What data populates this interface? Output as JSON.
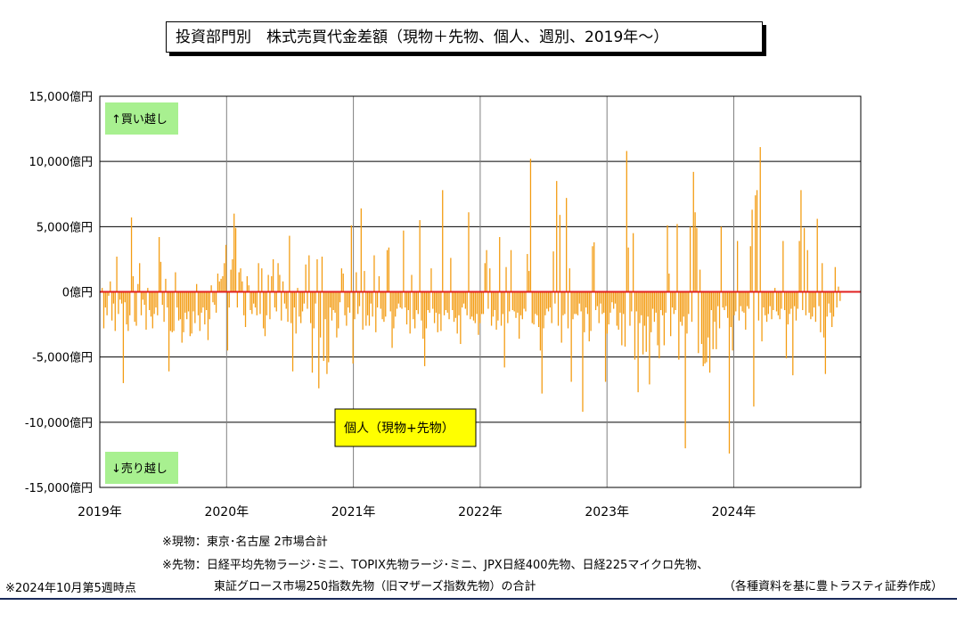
{
  "title": "投資部門別　株式売買代金差額（現物＋先物、個人、週別、2019年～）",
  "colors": {
    "bar": "#F39C12",
    "zero_line": "#E02020",
    "grid": "#000000",
    "label_bg": "#A8F090",
    "series_label_bg": "#FFFF00"
  },
  "annotations": {
    "buy": "↑買い越し",
    "sell": "↓売り越し",
    "series_label": "個人（現物+先物）"
  },
  "notes": {
    "spot": "※現物：東京･名古屋 2市場合計",
    "futures_line1": "※先物：日経平均先物ラージ･ミニ、TOPIX先物ラージ･ミニ、JPX日経400先物、日経225マイクロ先物、",
    "futures_line2": "東証グロース市場250指数先物（旧マザーズ指数先物）の合計",
    "as_of": "※2024年10月第5週時点",
    "source": "（各種資料を基に豊トラスティ証券作成）"
  },
  "chart_data": {
    "type": "bar",
    "title": "投資部門別　株式売買代金差額（現物＋先物、個人、週別、2019年～）",
    "series": [
      {
        "name": "個人（現物+先物）",
        "values": [
          300,
          -2800,
          -1200,
          -1800,
          -300,
          800,
          -2200,
          -900,
          -3000,
          2700,
          -1700,
          -600,
          -900,
          -7000,
          -800,
          -2500,
          -3000,
          -1800,
          5700,
          1200,
          -2300,
          -2600,
          600,
          2200,
          -1800,
          -600,
          -1000,
          -2900,
          300,
          -1400,
          -1900,
          -2800,
          -1700,
          -1200,
          -1800,
          4200,
          2300,
          -1000,
          -2300,
          1000,
          -1200,
          -6100,
          -3000,
          -3100,
          -3000,
          1500,
          -1200,
          -2200,
          -2100,
          -3900,
          -3100,
          -1600,
          -2100,
          -1500,
          -3400,
          -3200,
          -1500,
          -2400,
          600,
          -1800,
          -3000,
          -1600,
          -1200,
          -2500,
          -1400,
          -3700,
          -2100,
          500,
          -800,
          -1000,
          -1600,
          1400,
          800,
          1000,
          1200,
          2200,
          3600,
          -4500,
          -1200,
          1700,
          2500,
          6000,
          4900,
          -1200,
          1500,
          1800,
          800,
          -1800,
          -2700,
          1200,
          500,
          -1400,
          -1700,
          -900,
          -1200,
          -1800,
          2200,
          -1700,
          1800,
          -2800,
          -3400,
          -1800,
          1300,
          -2100,
          1200,
          2500,
          -1200,
          -1500,
          2200,
          1300,
          -2200,
          800,
          -900,
          -1300,
          -2300,
          4300,
          -2400,
          -6100,
          -1200,
          -3200,
          300,
          -1900,
          -2400,
          -1500,
          -900,
          2100,
          -1300,
          2800,
          -2400,
          -6200,
          -2800,
          -900,
          2500,
          -7400,
          -3500,
          2700,
          -5300,
          -2100,
          -6300,
          -5400,
          -1200,
          -2200,
          -1400,
          -1600,
          -3500,
          -2800,
          -800,
          1800,
          1400,
          -1800,
          -2600,
          -1200,
          -1600,
          5100,
          -5500,
          -2100,
          1500,
          -1700,
          -1100,
          6400,
          -2900,
          1600,
          -2600,
          -1800,
          -2600,
          -900,
          -1900,
          2800,
          -3100,
          -1200,
          1200,
          -1300,
          -2100,
          -2300,
          -1900,
          3200,
          3400,
          -1500,
          -4300,
          -2800,
          -1900,
          -1300,
          -900,
          -1200,
          -1300,
          4700,
          -1200,
          -2500,
          -1400,
          -3200,
          1300,
          -2100,
          -2800,
          -1400,
          -1700,
          5500,
          -2200,
          -3600,
          -5700,
          -2800,
          -1400,
          -1600,
          1800,
          -1300,
          -2400,
          -1600,
          -3100,
          -1700,
          -3000,
          7800,
          -1800,
          -1400,
          -1600,
          -2100,
          2600,
          -1400,
          -2300,
          -2000,
          -3200,
          -1800,
          -4000,
          -1200,
          -900,
          -1300,
          -1800,
          6100,
          -2100,
          -1900,
          -2200,
          -2400,
          -1700,
          -3300,
          -2400,
          -1700,
          -1700,
          2200,
          3200,
          -1300,
          1800,
          -2600,
          -1900,
          -1400,
          -2900,
          -2200,
          4200,
          -2600,
          -1700,
          -5800,
          1900,
          -2400,
          -1500,
          3200,
          -1400,
          -1500,
          -2000,
          -1600,
          -3600,
          -1800,
          -2100,
          -1300,
          -1500,
          2900,
          1600,
          10200,
          -2400,
          -2500,
          -1700,
          -1800,
          -2700,
          -4500,
          -7800,
          -2800,
          -1800,
          -1300,
          -1500,
          -1200,
          -2400,
          3100,
          -900,
          8500,
          -2600,
          5900,
          -3900,
          -1800,
          -1700,
          7200,
          -2800,
          1800,
          -6900,
          -2100,
          -1700,
          -1700,
          -1800,
          -900,
          -1500,
          -9200,
          -3100,
          -1200,
          -1700,
          -3800,
          -3000,
          3500,
          3800,
          -1400,
          -1100,
          -2400,
          -900,
          -1700,
          -1600,
          -6900,
          -3200,
          -2500,
          -1600,
          -800,
          -1300,
          -900,
          -2600,
          -2900,
          -1600,
          -4100,
          -1700,
          -4200,
          10800,
          3400,
          -2600,
          -1500,
          4500,
          -5200,
          -1500,
          -7700,
          -2400,
          -1800,
          -4800,
          -2600,
          -4600,
          -1900,
          -7100,
          -3100,
          -1300,
          -2300,
          -1600,
          -4100,
          -5100,
          -1400,
          -1800,
          -4100,
          -1600,
          5100,
          1400,
          -3400,
          -1200,
          -1700,
          -1400,
          5200,
          -5200,
          -2300,
          -2600,
          -1900,
          -12000,
          -3200,
          -1700,
          5000,
          -2300,
          9200,
          6100,
          4900,
          -4700,
          1700,
          -4000,
          -5700,
          -5500,
          -5400,
          -3500,
          -6200,
          -1400,
          -4400,
          -2300,
          -4400,
          -1100,
          -2800,
          5000,
          -1200,
          -1400,
          -1100,
          -2000,
          -12400,
          -2700,
          -4500,
          -1800,
          -1500,
          3900,
          -2200,
          -1100,
          -1500,
          -1600,
          -2900,
          -1100,
          -1300,
          3500,
          6300,
          -8800,
          7400,
          7800,
          -2200,
          11100,
          -3800,
          -1200,
          -1800,
          -2300,
          -1700,
          -1100,
          -2100,
          -1400,
          300,
          -1500,
          -1800,
          -2100,
          -1300,
          3900,
          -1400,
          -5100,
          -2500,
          -1700,
          -1300,
          -6400,
          -1100,
          -2200,
          -1300,
          3900,
          7800,
          -1400,
          4900,
          -1800,
          3200,
          -1600,
          -2100,
          -1900,
          -1200,
          -2300,
          5600,
          -1100,
          -3100,
          2200,
          -3500,
          -6300,
          -1900,
          -900,
          -1600,
          -2700,
          -1900,
          1900,
          -1200,
          400,
          -700
        ]
      }
    ],
    "ylim": [
      -15000,
      15000
    ],
    "yticks": [
      -15000,
      -10000,
      -5000,
      0,
      5000,
      10000,
      15000
    ],
    "ytick_labels": [
      "-15,000億円",
      "-10,000億円",
      "-5,000億円",
      "0億円",
      "5,000億円",
      "10,000億円",
      "15,000億円"
    ],
    "xtick_labels": [
      "2019年",
      "2020年",
      "2021年",
      "2022年",
      "2023年",
      "2024年"
    ],
    "grid": true,
    "legend": "none"
  }
}
